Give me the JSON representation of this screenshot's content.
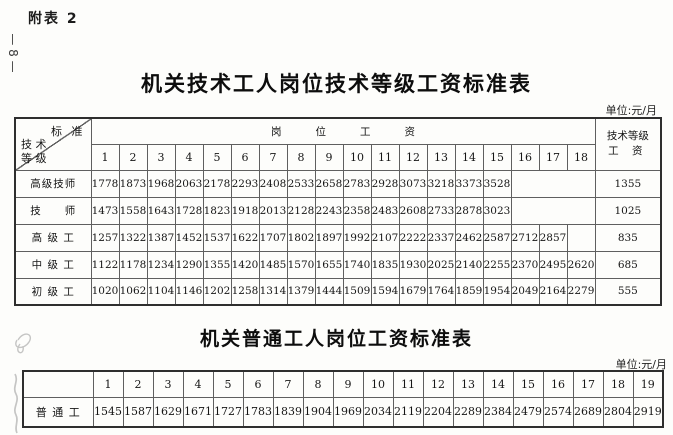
{
  "page": {
    "appendix_tag": "附表 2",
    "side_page_number": "— 8 —"
  },
  "table1": {
    "title": "机关技术工人岗位技术等级工资标准表",
    "unit": "单位:元/月",
    "corner": {
      "top_right": "标 准",
      "bottom_left_line1": "技 术",
      "bottom_left_line2": "等 级"
    },
    "span_header": "岗位工资",
    "grade_header_line1": "技术等级",
    "grade_header_line2": "工 资",
    "columns": [
      "1",
      "2",
      "3",
      "4",
      "5",
      "6",
      "7",
      "8",
      "9",
      "10",
      "11",
      "12",
      "13",
      "14",
      "15",
      "16",
      "17",
      "18"
    ],
    "rows": [
      {
        "label": "高级技师",
        "values": [
          "1778",
          "1873",
          "1968",
          "2063",
          "2178",
          "2293",
          "2408",
          "2533",
          "2658",
          "2783",
          "2928",
          "3073",
          "3218",
          "3373",
          "3528",
          "",
          "",
          ""
        ],
        "grade_wage": "1355"
      },
      {
        "label": "技　　师",
        "values": [
          "1473",
          "1558",
          "1643",
          "1728",
          "1823",
          "1918",
          "2013",
          "2128",
          "2243",
          "2358",
          "2483",
          "2608",
          "2733",
          "2878",
          "3023",
          "",
          "",
          ""
        ],
        "grade_wage": "1025"
      },
      {
        "label": "高 级 工",
        "values": [
          "1257",
          "1322",
          "1387",
          "1452",
          "1537",
          "1622",
          "1707",
          "1802",
          "1897",
          "1992",
          "2107",
          "2222",
          "2337",
          "2462",
          "2587",
          "2712",
          "2857",
          ""
        ],
        "grade_wage": "835"
      },
      {
        "label": "中 级 工",
        "values": [
          "1122",
          "1178",
          "1234",
          "1290",
          "1355",
          "1420",
          "1485",
          "1570",
          "1655",
          "1740",
          "1835",
          "1930",
          "2025",
          "2140",
          "2255",
          "2370",
          "2495",
          "2620"
        ],
        "grade_wage": "685"
      },
      {
        "label": "初 级 工",
        "values": [
          "1020",
          "1062",
          "1104",
          "1146",
          "1202",
          "1258",
          "1314",
          "1379",
          "1444",
          "1509",
          "1594",
          "1679",
          "1764",
          "1859",
          "1954",
          "2049",
          "2164",
          "2279"
        ],
        "grade_wage": "555"
      }
    ]
  },
  "table2": {
    "title": "机关普通工人岗位工资标准表",
    "unit": "单位:元/月",
    "columns": [
      "1",
      "2",
      "3",
      "4",
      "5",
      "6",
      "7",
      "8",
      "9",
      "10",
      "11",
      "12",
      "13",
      "14",
      "15",
      "16",
      "17",
      "18",
      "19"
    ],
    "rows": [
      {
        "label": "普 通 工",
        "values": [
          "1545",
          "1587",
          "1629",
          "1671",
          "1727",
          "1783",
          "1839",
          "1904",
          "1969",
          "2034",
          "2119",
          "2204",
          "2289",
          "2384",
          "2479",
          "2574",
          "2689",
          "2804",
          "2919"
        ]
      }
    ]
  }
}
